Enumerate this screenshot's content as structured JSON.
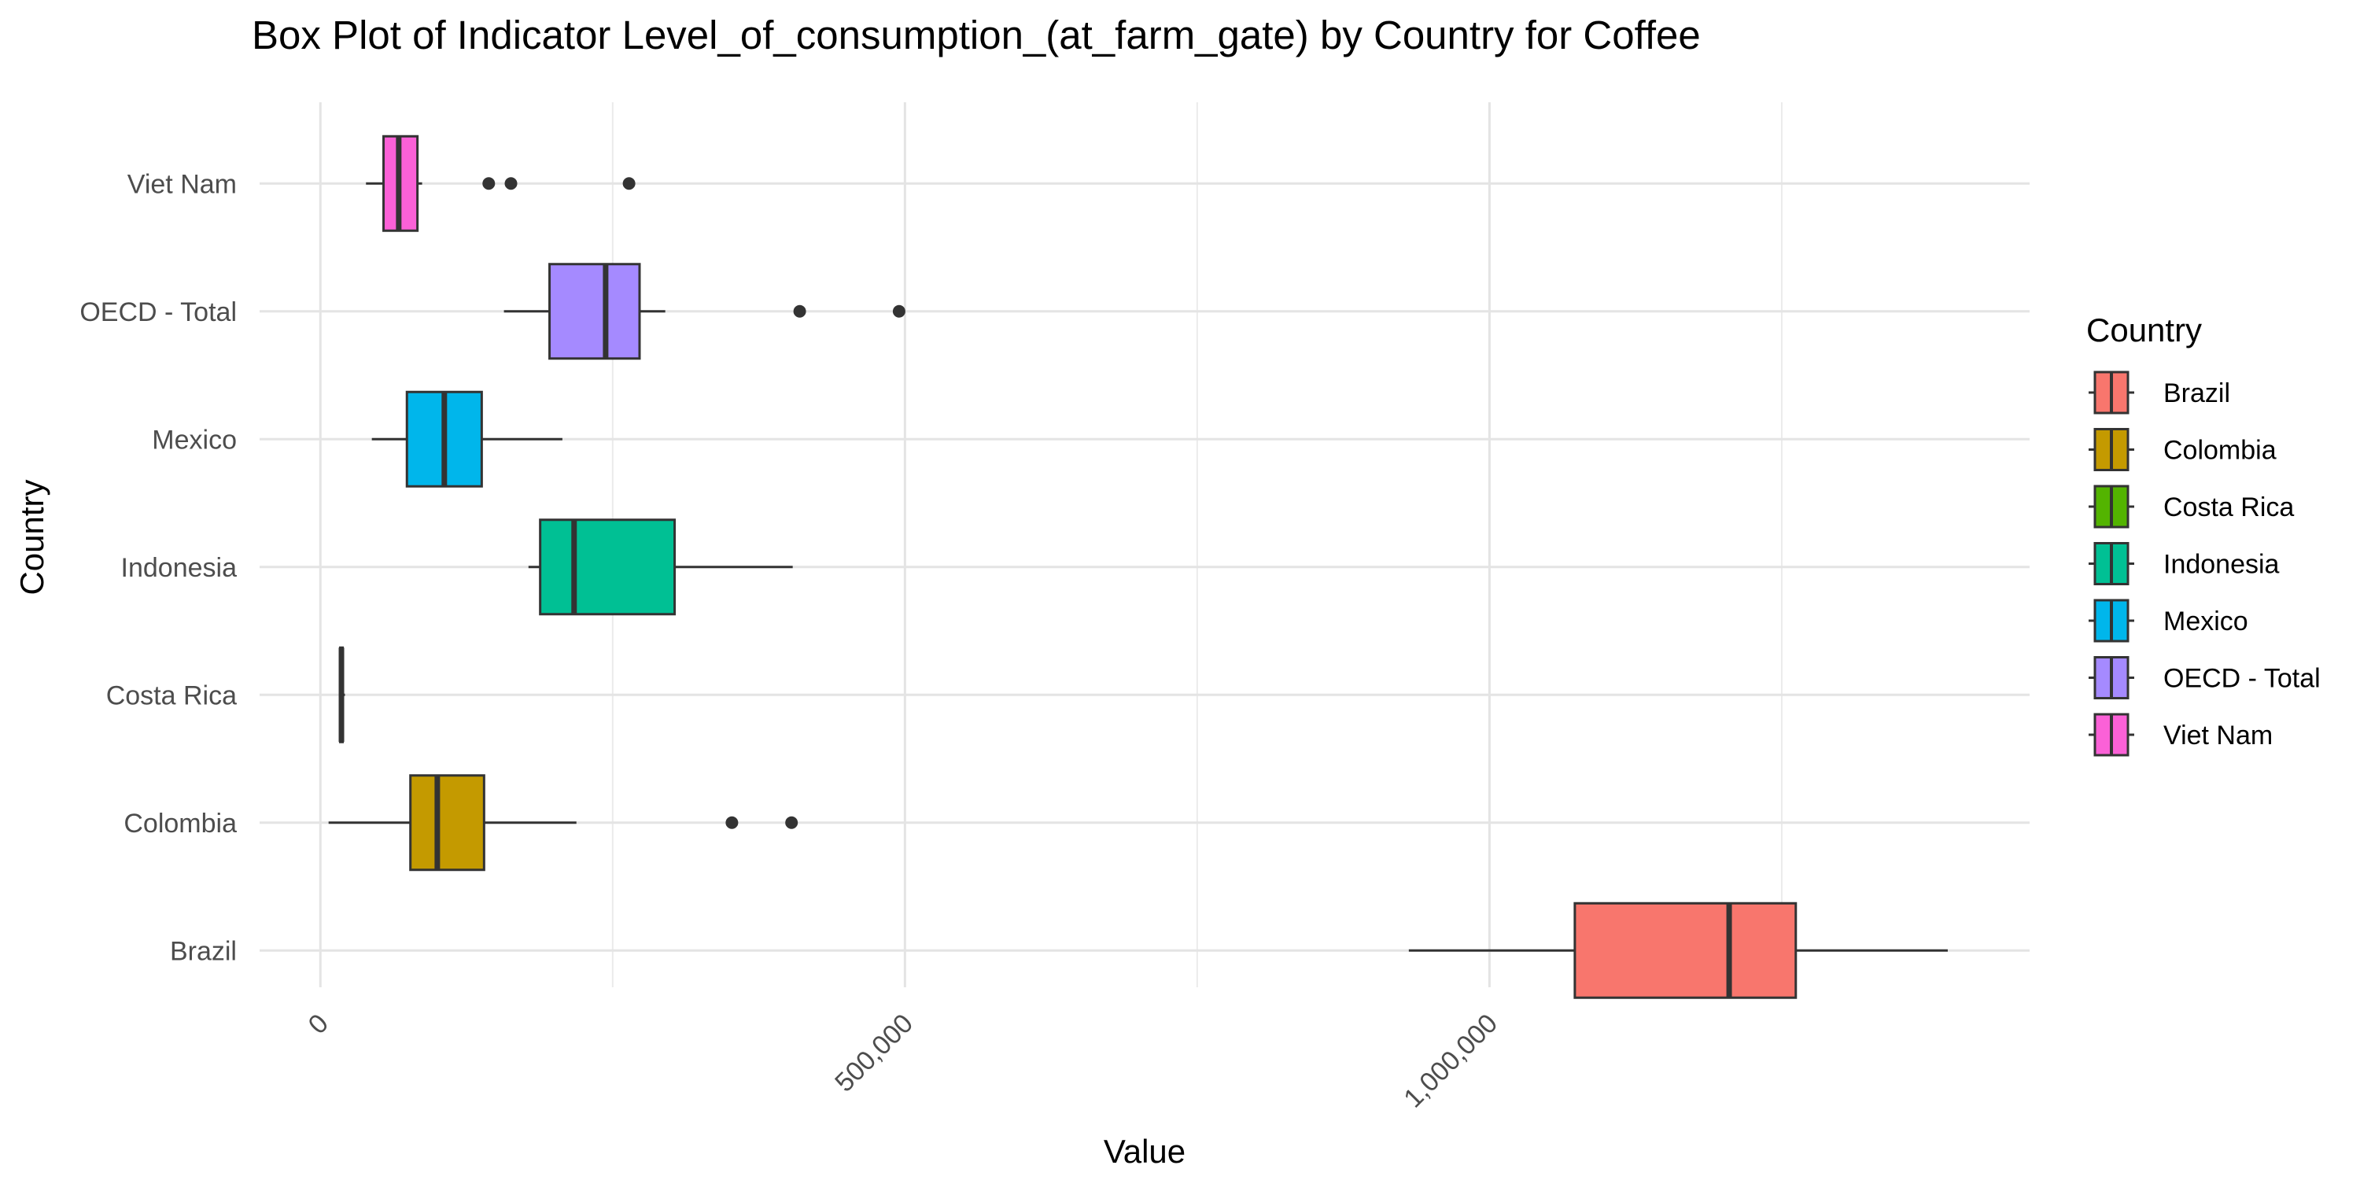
{
  "chart_data": {
    "type": "box",
    "title": "Box Plot of Indicator Level_of_consumption_(at_farm_gate) by Country for Coffee",
    "xlabel": "Value",
    "ylabel": "Country",
    "xlim": [
      -52000,
      1462000
    ],
    "x_ticks": [
      0,
      500000,
      1000000
    ],
    "x_tick_labels": [
      "0",
      "500,000",
      "1,000,000"
    ],
    "grid": true,
    "legend": {
      "title": "Country",
      "position": "right"
    },
    "categories": [
      "Brazil",
      "Colombia",
      "Costa Rica",
      "Indonesia",
      "Mexico",
      "OECD - Total",
      "Viet Nam"
    ],
    "series": [
      {
        "name": "Brazil",
        "color": "#F8766D",
        "min": 931000,
        "q1": 1073000,
        "median": 1205000,
        "q3": 1262000,
        "max": 1392000,
        "outliers": []
      },
      {
        "name": "Colombia",
        "color": "#C49A00",
        "min": 7000,
        "q1": 77000,
        "median": 100000,
        "q3": 140000,
        "max": 219000,
        "outliers": [
          352000,
          403000
        ]
      },
      {
        "name": "Costa Rica",
        "color": "#53B400",
        "min": 16000,
        "q1": 17000,
        "median": 18000,
        "q3": 19000,
        "max": 21000,
        "outliers": []
      },
      {
        "name": "Indonesia",
        "color": "#00C094",
        "min": 178000,
        "q1": 188000,
        "median": 217000,
        "q3": 303000,
        "max": 404000,
        "outliers": []
      },
      {
        "name": "Mexico",
        "color": "#00B6EB",
        "min": 44000,
        "q1": 74000,
        "median": 106000,
        "q3": 138000,
        "max": 207000,
        "outliers": []
      },
      {
        "name": "OECD - Total",
        "color": "#A58AFF",
        "min": 157000,
        "q1": 196000,
        "median": 244000,
        "q3": 273000,
        "max": 295000,
        "outliers": [
          410000,
          495000
        ]
      },
      {
        "name": "Viet Nam",
        "color": "#FB61D7",
        "min": 39000,
        "q1": 54000,
        "median": 67000,
        "q3": 83000,
        "max": 87000,
        "outliers": [
          144000,
          163000,
          264000
        ]
      }
    ]
  }
}
